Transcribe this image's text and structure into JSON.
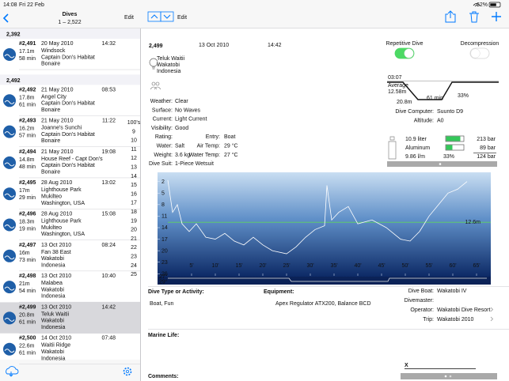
{
  "status_bar": {
    "time": "14:08",
    "date": "Fri 22 Feb",
    "battery": "62%"
  },
  "list": {
    "title": "Dives",
    "subtitle": "1 – 2,522",
    "edit": "Edit",
    "sections": [
      {
        "header": "2,392",
        "dives": [
          {
            "number": "#2,491",
            "date": "20 May 2010",
            "time": "14:32",
            "depth": "17.1m",
            "duration": "58 min",
            "site": [
              "Windsock",
              "Captain Don's Habitat",
              "Bonaire"
            ]
          }
        ]
      },
      {
        "header": "2,492",
        "dives": [
          {
            "number": "#2,492",
            "date": "21 May 2010",
            "time": "08:53",
            "depth": "17.8m",
            "duration": "61 min",
            "site": [
              "Angel City",
              "Captain Don's Habitat",
              "Bonaire"
            ]
          },
          {
            "number": "#2,493",
            "date": "21 May 2010",
            "time": "11:22",
            "depth": "16.2m",
            "duration": "57 min",
            "site": [
              "Joanne's Sunchi",
              "Captain Don's Habitat",
              "Bonaire"
            ]
          },
          {
            "number": "#2,494",
            "date": "21 May 2010",
            "time": "19:08",
            "depth": "14.8m",
            "duration": "48 min",
            "site": [
              "House Reef - Capt Don's",
              "Captain Don's Habitat",
              "Bonaire"
            ]
          },
          {
            "number": "#2,495",
            "date": "28 Aug 2010",
            "time": "13:02",
            "depth": "17m",
            "duration": "29 min",
            "site": [
              "Lighthouse Park",
              "Mukilteo",
              "Washington, USA"
            ]
          },
          {
            "number": "#2,496",
            "date": "28 Aug 2010",
            "time": "15:08",
            "depth": "18.3m",
            "duration": "19 min",
            "site": [
              "Lighthouse Park",
              "Mukilteo",
              "Washington, USA"
            ]
          },
          {
            "number": "#2,497",
            "date": "13 Oct 2010",
            "time": "08:24",
            "depth": "16m",
            "duration": "73 min",
            "site": [
              "Fan 38 East",
              "Wakatobi",
              "Indonesia"
            ]
          },
          {
            "number": "#2,498",
            "date": "13 Oct 2010",
            "time": "10:40",
            "depth": "21m",
            "duration": "54 min",
            "site": [
              "Malabea",
              "Wakatobi",
              "Indonesia"
            ]
          },
          {
            "number": "#2,499",
            "date": "13 Oct 2010",
            "time": "14:42",
            "depth": "20.8m",
            "duration": "61 min",
            "site": [
              "Teluk Waitii",
              "Wakatobi",
              "Indonesia"
            ],
            "selected": true
          },
          {
            "number": "#2,500",
            "date": "14 Oct 2010",
            "time": "07:48",
            "depth": "22.6m",
            "duration": "61 min",
            "site": [
              "Waitii Ridge",
              "Wakatobi",
              "Indonesia"
            ]
          }
        ]
      }
    ],
    "index": [
      "100's",
      "9",
      "10",
      "11",
      "12",
      "13",
      "14",
      "15",
      "16",
      "17",
      "18",
      "19",
      "20",
      "21",
      "22",
      "23",
      "24",
      "25"
    ]
  },
  "detail": {
    "edit": "Edit",
    "number": "2,499",
    "date": "13 Oct 2010",
    "time": "14:42",
    "site": [
      "Teluk Waitii",
      "Wakatobi",
      "Indonesia"
    ],
    "toggles": [
      {
        "label": "Repetitive Dive",
        "on": true
      },
      {
        "label": "Decompression",
        "on": false
      }
    ],
    "summary": {
      "surface_interval": "03:07",
      "average_label": "Average",
      "average": "12.58m",
      "max_depth": "20.8m",
      "duration": "61 min",
      "percent": "33%"
    },
    "fields": [
      {
        "label": "Weather:",
        "value": "Clear"
      },
      {
        "label": "Surface:",
        "value": "No Waves"
      },
      {
        "label": "Current:",
        "value": "Light Current"
      },
      {
        "label": "Visibility:",
        "value": "Good"
      },
      {
        "label": "Rating:"
      },
      {
        "label": "Water:",
        "value": "Salt"
      },
      {
        "label": "Weight:",
        "value": "3.6 kg"
      },
      {
        "label": "Dive Suit:",
        "value": "1-Piece Wetsuit"
      }
    ],
    "fields_right": [
      {
        "label": "Entry:",
        "value": "Boat"
      },
      {
        "label": "Air Temp:",
        "value": "29 °C"
      },
      {
        "label": "Water Temp:",
        "value": "27 °C"
      }
    ],
    "computer": [
      {
        "label": "Dive Computer:",
        "value": "Suunto D9"
      },
      {
        "label": "Altitude:",
        "value": "A0"
      }
    ],
    "tank": {
      "volume": "10.9 liter",
      "start": "213 bar",
      "material": "Aluminum",
      "end": "89 bar",
      "sac": "9.86 l/m",
      "percent": "33%",
      "used": "124 bar"
    },
    "profile": {
      "type": "line",
      "minutes": [
        0,
        1,
        2,
        3,
        4.5,
        6,
        8,
        10,
        12,
        14,
        16,
        18,
        20,
        22,
        25,
        27,
        29,
        31,
        33,
        33.5,
        34.5,
        36,
        38,
        40,
        43,
        46,
        49,
        51,
        53,
        55,
        57,
        59,
        61,
        63
      ],
      "depth": [
        1.6,
        10,
        8,
        13,
        15,
        13,
        16.5,
        17,
        15.5,
        17.5,
        18.5,
        16.5,
        18.5,
        20,
        20.8,
        19,
        16.5,
        14.5,
        13.5,
        3,
        12,
        10,
        8.5,
        13,
        12,
        14,
        17,
        17.5,
        15,
        11,
        8,
        5,
        4,
        2
      ],
      "xlim": [
        0,
        68
      ],
      "ylim": [
        0,
        28
      ],
      "xticks": [
        {
          "value": 5,
          "label": "5'"
        },
        {
          "value": 10,
          "label": "10'"
        },
        {
          "value": 15,
          "label": "15'"
        },
        {
          "value": 20,
          "label": "20'"
        },
        {
          "value": 25,
          "label": "25'"
        },
        {
          "value": 30,
          "label": "30'"
        },
        {
          "value": 35,
          "label": "35'"
        },
        {
          "value": 40,
          "label": "40'"
        },
        {
          "value": 45,
          "label": "45'"
        },
        {
          "value": 50,
          "label": "50'"
        },
        {
          "value": 55,
          "label": "55'"
        },
        {
          "value": 60,
          "label": "60'"
        },
        {
          "value": 65,
          "label": "65'"
        }
      ],
      "yticks": [
        2,
        5,
        8,
        11,
        14,
        17,
        20,
        23,
        26
      ],
      "average": {
        "value": 12.6,
        "label": "12.6m"
      },
      "color": "#ffffff",
      "average_color": "#5fd35f",
      "temps": [
        "27°",
        "29°"
      ]
    },
    "activity": {
      "label": "Dive Type or Activity:",
      "value": "Boat, Fun"
    },
    "equipment": {
      "label": "Equipment:",
      "value": "Apex Regulator ATX200, Balance BCD"
    },
    "trip": [
      {
        "label": "Dive Boat:",
        "value": "Wakatobi IV"
      },
      {
        "label": "Divemaster:"
      },
      {
        "label": "Operator:",
        "value": "Wakatobi Dive Resort"
      },
      {
        "label": "Trip:",
        "value": "Wakatobi 2010"
      }
    ],
    "marine_life": "Marine Life:",
    "comments": "Comments:",
    "signature": "X"
  }
}
